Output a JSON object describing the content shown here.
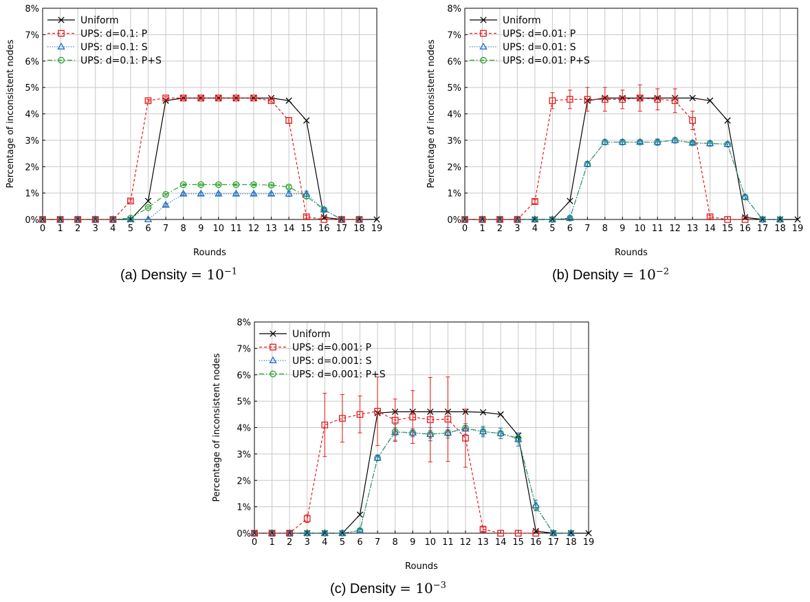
{
  "figure": {
    "captions": [
      {
        "prefix": "(a) Density ",
        "math": "= 10",
        "exp": "−1"
      },
      {
        "prefix": "(b) Density ",
        "math": "= 10",
        "exp": "−2"
      },
      {
        "prefix": "(c) Density ",
        "math": "= 10",
        "exp": "−3"
      }
    ]
  },
  "chart_data": [
    {
      "type": "line",
      "xlabel": "Rounds",
      "ylabel": "Percentage of inconsistent nodes",
      "xlim": [
        0,
        19
      ],
      "ylim": [
        0,
        8
      ],
      "xticks": [
        "0",
        "1",
        "2",
        "3",
        "4",
        "5",
        "6",
        "7",
        "8",
        "9",
        "10",
        "11",
        "12",
        "13",
        "14",
        "15",
        "16",
        "17",
        "18",
        "19"
      ],
      "yticks": [
        "0%",
        "1%",
        "2%",
        "3%",
        "4%",
        "5%",
        "6%",
        "7%",
        "8%"
      ],
      "grid": true,
      "legend_position": "top-left",
      "x": [
        0,
        1,
        2,
        3,
        4,
        5,
        6,
        7,
        8,
        9,
        10,
        11,
        12,
        13,
        14,
        15,
        16,
        17,
        18,
        19
      ],
      "series": [
        {
          "name": "Uniform",
          "color": "#000000",
          "dash": "solid",
          "marker": "x",
          "values": [
            0,
            0,
            0,
            0,
            0,
            0,
            0.7,
            4.5,
            4.6,
            4.6,
            4.6,
            4.6,
            4.6,
            4.6,
            4.5,
            3.75,
            0.08,
            0,
            0,
            0
          ]
        },
        {
          "name": "UPS: d=0.1: P",
          "color": "#e41a1c",
          "dash": "dashed",
          "marker": "square",
          "values": [
            0,
            0,
            0,
            0,
            0,
            0.7,
            4.5,
            4.6,
            4.6,
            4.6,
            4.6,
            4.6,
            4.6,
            4.5,
            3.75,
            0.1,
            0,
            0,
            0,
            null
          ],
          "errors": [
            0,
            0,
            0,
            0,
            0,
            0.05,
            0.05,
            0.05,
            0.05,
            0.05,
            0.05,
            0.05,
            0.05,
            0.05,
            0.1,
            0.05,
            0,
            0,
            0,
            null
          ]
        },
        {
          "name": "UPS: d=0.1: S",
          "color": "#1f6fbf",
          "dash": "dotted",
          "marker": "triangle",
          "values": [
            0,
            0,
            0,
            0,
            0,
            0,
            0,
            0.55,
            0.97,
            0.97,
            0.97,
            0.97,
            0.97,
            0.97,
            0.97,
            0.97,
            0.37,
            0,
            0,
            null
          ],
          "errors": [
            0,
            0,
            0,
            0,
            0,
            0,
            0,
            0.05,
            0.05,
            0.05,
            0.05,
            0.05,
            0.05,
            0.05,
            0.1,
            0.1,
            0.05,
            0,
            0,
            null
          ]
        },
        {
          "name": "UPS: d=0.1: P+S",
          "color": "#2ca02c",
          "dash": "dashdot",
          "marker": "circle",
          "values": [
            0,
            0,
            0,
            0,
            0,
            0.05,
            0.45,
            0.95,
            1.32,
            1.32,
            1.32,
            1.32,
            1.32,
            1.3,
            1.23,
            0.88,
            0.37,
            0,
            0,
            null
          ],
          "errors": [
            0,
            0,
            0,
            0,
            0,
            0,
            0.03,
            0.03,
            0.03,
            0.03,
            0.03,
            0.03,
            0.03,
            0.03,
            0.05,
            0.08,
            0.05,
            0,
            0,
            null
          ]
        }
      ]
    },
    {
      "type": "line",
      "xlabel": "Rounds",
      "ylabel": "Percentage of inconsistent nodes",
      "xlim": [
        0,
        19
      ],
      "ylim": [
        0,
        8
      ],
      "xticks": [
        "0",
        "1",
        "2",
        "3",
        "4",
        "5",
        "6",
        "7",
        "8",
        "9",
        "10",
        "11",
        "12",
        "13",
        "14",
        "15",
        "16",
        "17",
        "18",
        "19"
      ],
      "yticks": [
        "0%",
        "1%",
        "2%",
        "3%",
        "4%",
        "5%",
        "6%",
        "7%",
        "8%"
      ],
      "grid": true,
      "legend_position": "top-left",
      "x": [
        0,
        1,
        2,
        3,
        4,
        5,
        6,
        7,
        8,
        9,
        10,
        11,
        12,
        13,
        14,
        15,
        16,
        17,
        18,
        19
      ],
      "series": [
        {
          "name": "Uniform",
          "color": "#000000",
          "dash": "solid",
          "marker": "x",
          "values": [
            0,
            0,
            0,
            0,
            0,
            0,
            0.7,
            4.5,
            4.6,
            4.6,
            4.6,
            4.6,
            4.6,
            4.6,
            4.5,
            3.75,
            0.08,
            0,
            0,
            0
          ]
        },
        {
          "name": "UPS: d=0.01: P",
          "color": "#e41a1c",
          "dash": "dashed",
          "marker": "square",
          "values": [
            0,
            0,
            0,
            0,
            0.68,
            4.5,
            4.55,
            4.55,
            4.55,
            4.55,
            4.6,
            4.55,
            4.5,
            3.75,
            0.1,
            0,
            0,
            null,
            null,
            null
          ],
          "errors": [
            0,
            0,
            0,
            0,
            0.08,
            0.3,
            0.35,
            0.45,
            0.45,
            0.35,
            0.5,
            0.4,
            0.45,
            0.35,
            0.05,
            0,
            0,
            null,
            null,
            null
          ]
        },
        {
          "name": "UPS: d=0.01: S",
          "color": "#1f6fbf",
          "dash": "dotted",
          "marker": "triangle",
          "values": [
            0,
            0,
            0,
            0,
            0,
            0,
            0.05,
            2.1,
            2.93,
            2.93,
            2.93,
            2.93,
            3.0,
            2.9,
            2.88,
            2.85,
            0.85,
            0,
            0,
            null
          ],
          "errors": [
            0,
            0,
            0,
            0,
            0,
            0,
            0.03,
            0.1,
            0.08,
            0.1,
            0.05,
            0.12,
            0.1,
            0.05,
            0.1,
            0.08,
            0.08,
            0,
            0,
            null
          ]
        },
        {
          "name": "UPS: d=0.01: P+S",
          "color": "#2ca02c",
          "dash": "dashdot",
          "marker": "circle",
          "values": [
            0,
            0,
            0,
            0,
            0,
            0,
            0.05,
            2.1,
            2.93,
            2.93,
            2.93,
            2.93,
            3.0,
            2.9,
            2.88,
            2.85,
            0.85,
            0,
            0,
            null
          ],
          "errors": [
            0,
            0,
            0,
            0,
            0,
            0,
            0.03,
            0.1,
            0.08,
            0.1,
            0.05,
            0.12,
            0.1,
            0.05,
            0.1,
            0.08,
            0.08,
            0,
            0,
            null
          ]
        }
      ]
    },
    {
      "type": "line",
      "xlabel": "Rounds",
      "ylabel": "Percentage of inconsistent nodes",
      "xlim": [
        0,
        19
      ],
      "ylim": [
        0,
        8
      ],
      "xticks": [
        "0",
        "1",
        "2",
        "3",
        "4",
        "5",
        "6",
        "7",
        "8",
        "9",
        "10",
        "11",
        "12",
        "13",
        "14",
        "15",
        "16",
        "17",
        "18",
        "19"
      ],
      "yticks": [
        "0%",
        "1%",
        "2%",
        "3%",
        "4%",
        "5%",
        "6%",
        "7%",
        "8%"
      ],
      "grid": true,
      "legend_position": "top-left",
      "x": [
        0,
        1,
        2,
        3,
        4,
        5,
        6,
        7,
        8,
        9,
        10,
        11,
        12,
        13,
        14,
        15,
        16,
        17,
        18,
        19
      ],
      "series": [
        {
          "name": "Uniform",
          "color": "#000000",
          "dash": "solid",
          "marker": "x",
          "values": [
            0,
            0,
            0,
            0,
            0,
            0,
            0.7,
            4.55,
            4.6,
            4.6,
            4.6,
            4.6,
            4.6,
            4.58,
            4.5,
            3.7,
            0.08,
            0,
            0,
            0
          ]
        },
        {
          "name": "UPS: d=0.001: P",
          "color": "#e41a1c",
          "dash": "dashed",
          "marker": "square",
          "values": [
            0,
            0,
            0,
            0.55,
            4.1,
            4.35,
            4.5,
            4.62,
            4.28,
            4.4,
            4.3,
            4.32,
            3.6,
            0.15,
            0,
            0,
            0,
            null,
            null,
            null
          ],
          "errors": [
            0,
            0,
            0,
            0.15,
            1.2,
            0.9,
            0.7,
            1.3,
            0.8,
            1.0,
            1.6,
            1.6,
            1.1,
            0.08,
            0,
            0,
            0,
            null,
            null,
            null
          ]
        },
        {
          "name": "UPS: d=0.001: S",
          "color": "#1f6fbf",
          "dash": "dotted",
          "marker": "triangle",
          "values": [
            0,
            0,
            0,
            0,
            0,
            0,
            0.1,
            2.85,
            3.82,
            3.8,
            3.75,
            3.8,
            3.95,
            3.85,
            3.78,
            3.55,
            1.05,
            0,
            0,
            null
          ],
          "errors": [
            0,
            0,
            0,
            0,
            0,
            0,
            0.05,
            0.1,
            0.3,
            0.15,
            0.25,
            0.2,
            0.2,
            0.2,
            0.2,
            0.25,
            0.2,
            0,
            0,
            null
          ]
        },
        {
          "name": "UPS: d=0.001: P+S",
          "color": "#2ca02c",
          "dash": "dashdot",
          "marker": "circle",
          "values": [
            0,
            0,
            0,
            0,
            0,
            0,
            0.1,
            2.85,
            3.85,
            3.8,
            3.75,
            3.8,
            3.98,
            3.85,
            3.78,
            3.6,
            1.0,
            0,
            0,
            null
          ],
          "errors": [
            0,
            0,
            0,
            0,
            0,
            0,
            0.05,
            0.1,
            0.15,
            0.1,
            0.15,
            0.12,
            0.1,
            0.15,
            0.1,
            0.12,
            0.15,
            0,
            0,
            null
          ]
        }
      ]
    }
  ]
}
